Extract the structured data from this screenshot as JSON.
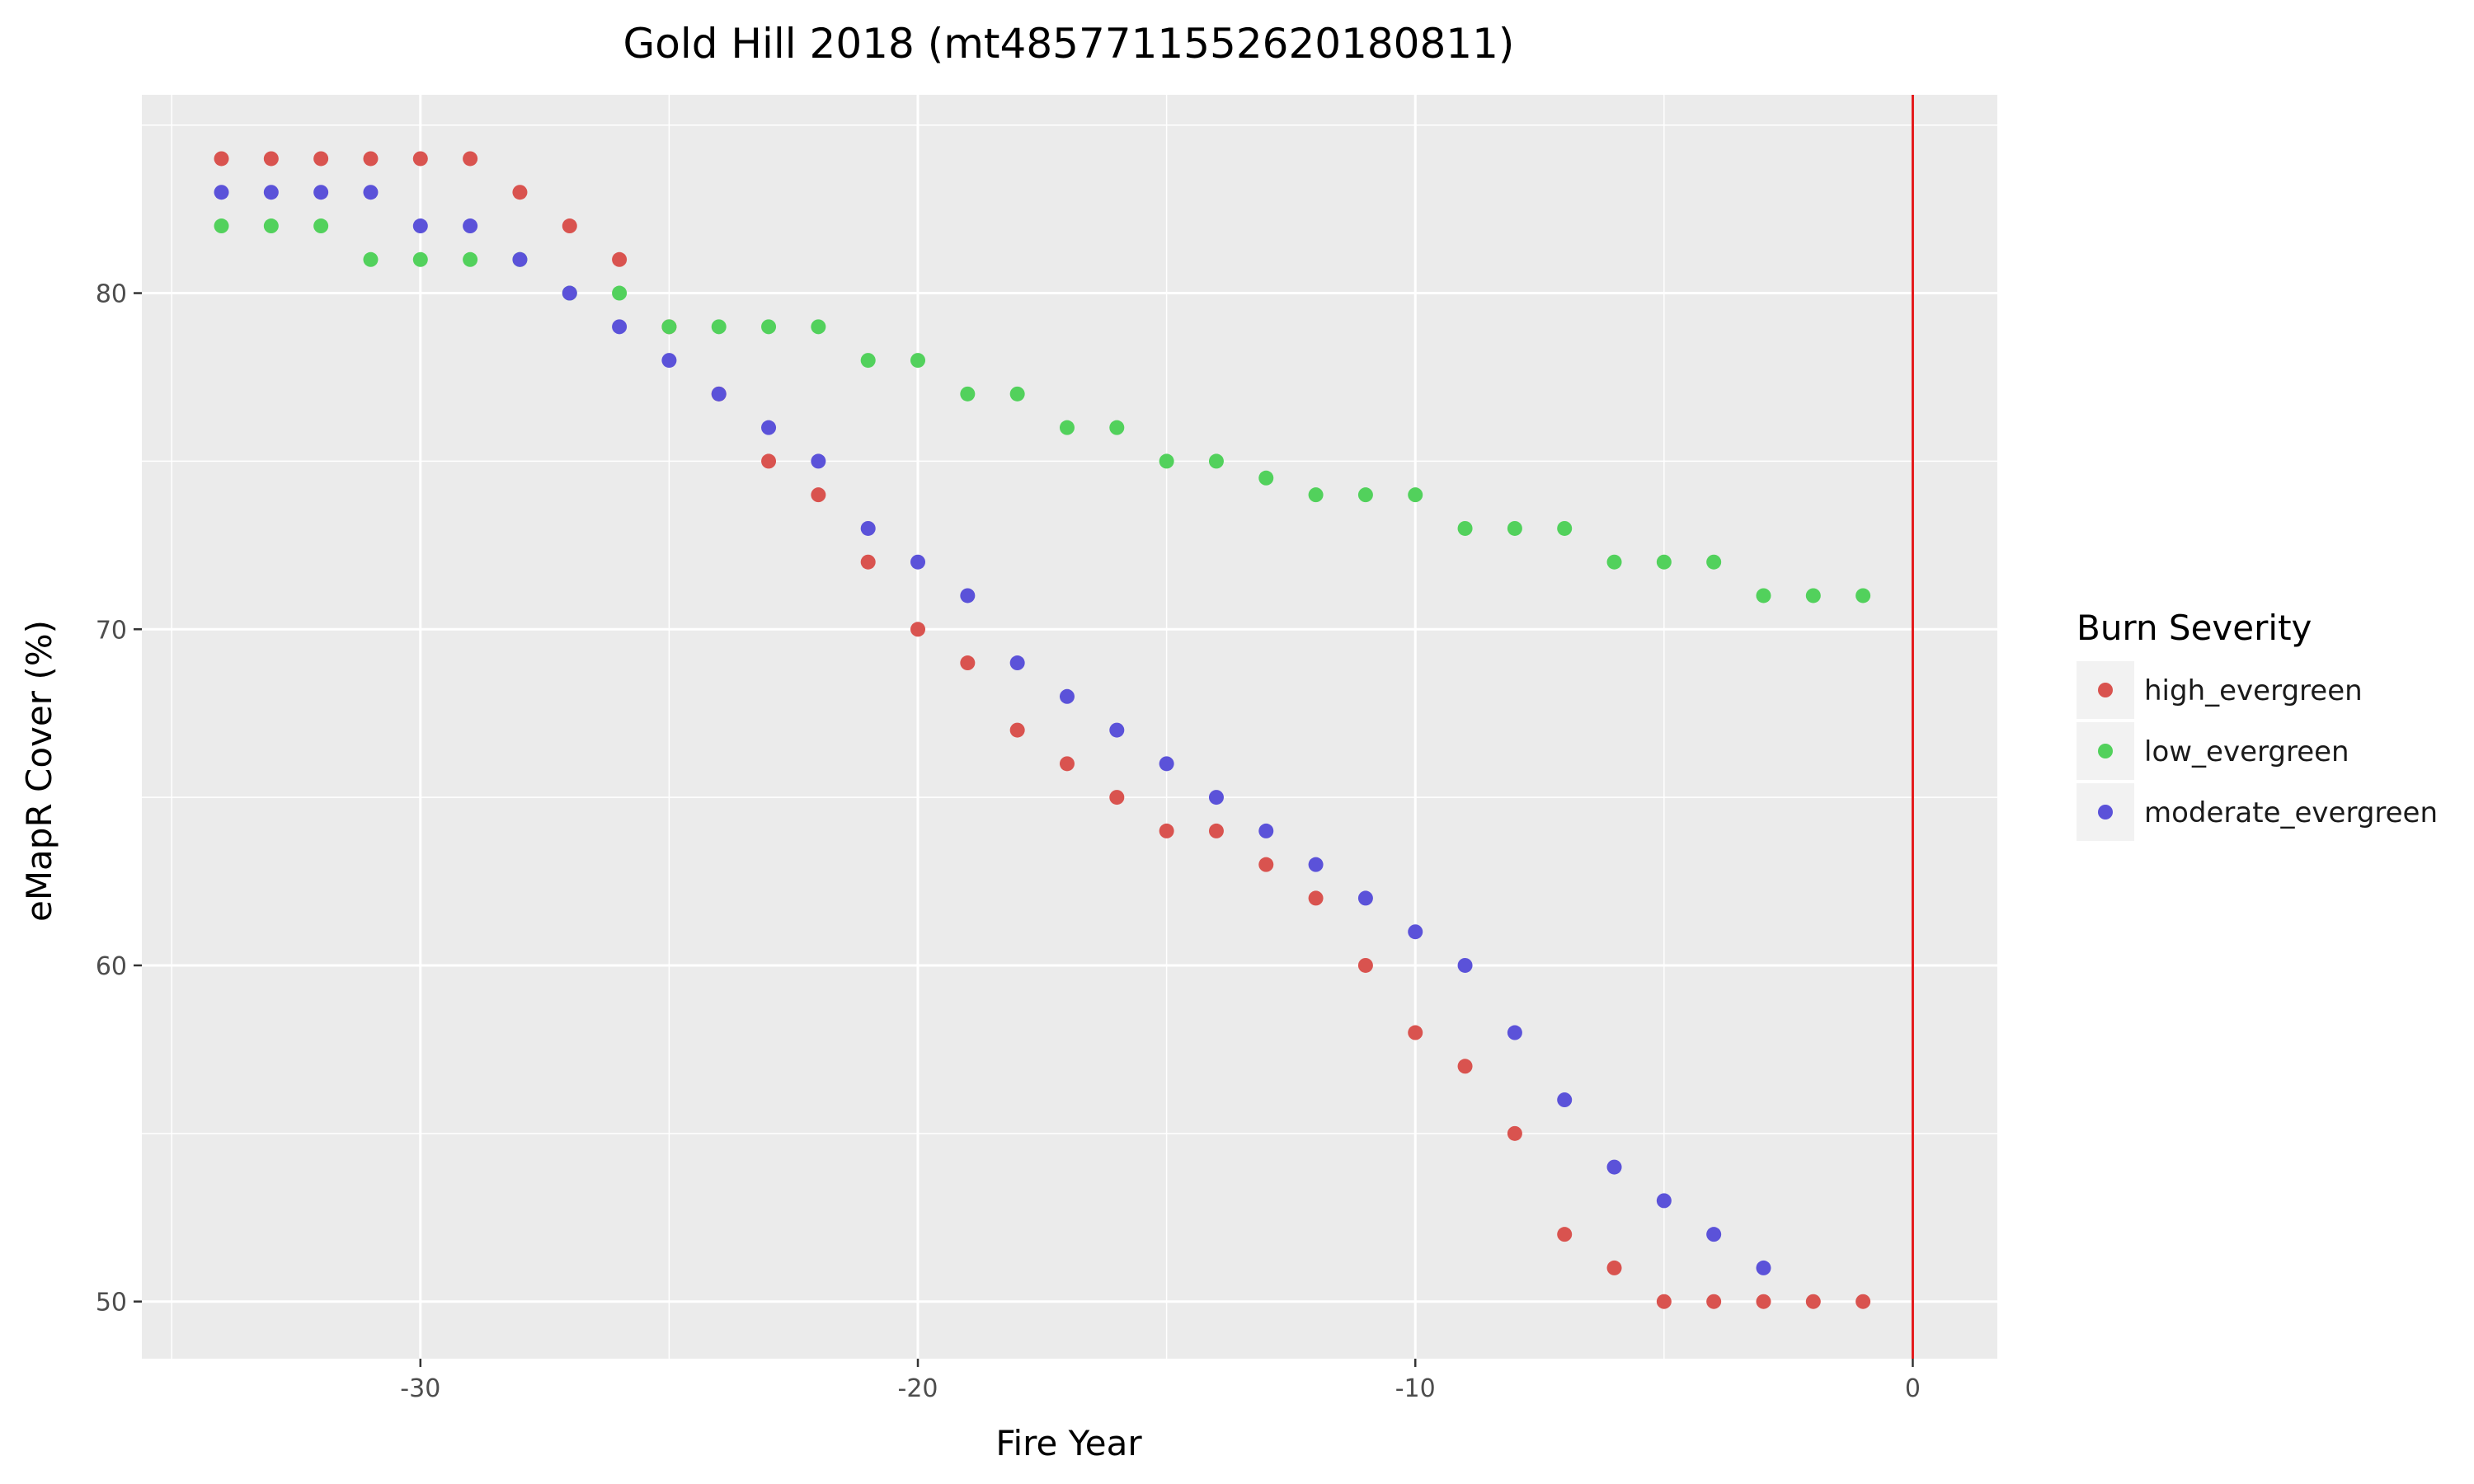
{
  "chart_data": {
    "type": "scatter",
    "title": "Gold Hill 2018 (mt4857711552620180811)",
    "xlabel": "Fire Year",
    "ylabel": "eMapR Cover (%)",
    "xlim": [
      -35.6,
      1.7
    ],
    "ylim": [
      48.3,
      85.9
    ],
    "x_ticks": [
      -30,
      -20,
      -10,
      0
    ],
    "x_tick_labels": [
      "-30",
      "-20",
      "-10",
      "0"
    ],
    "y_ticks": [
      50,
      60,
      70,
      80
    ],
    "y_tick_labels": [
      "50",
      "60",
      "70",
      "80"
    ],
    "grid": true,
    "vline": {
      "x": 0,
      "color": "#e41a1c"
    },
    "legend": {
      "title": "Burn Severity",
      "position": "right"
    },
    "series": [
      {
        "name": "high_evergreen",
        "color": "#d9534f",
        "x": [
          -34,
          -33,
          -32,
          -31,
          -30,
          -29,
          -28,
          -27,
          -26,
          -25,
          -24,
          -23,
          -22,
          -21,
          -20,
          -19,
          -18,
          -17,
          -16,
          -15,
          -14,
          -13,
          -12,
          -11,
          -10,
          -9,
          -8,
          -7,
          -6,
          -5,
          -4,
          -3,
          -2,
          -1
        ],
        "y": [
          84,
          84,
          84,
          84,
          84,
          84,
          83,
          82,
          81,
          79,
          77,
          75,
          74,
          72,
          70,
          69,
          67,
          66,
          65,
          64,
          64,
          63,
          62,
          60,
          58,
          57,
          55,
          52,
          51,
          50,
          50,
          50,
          50,
          50
        ]
      },
      {
        "name": "low_evergreen",
        "color": "#52d15c",
        "x": [
          -34,
          -33,
          -32,
          -31,
          -30,
          -29,
          -28,
          -27,
          -26,
          -25,
          -24,
          -23,
          -22,
          -21,
          -20,
          -19,
          -18,
          -17,
          -16,
          -15,
          -14,
          -13,
          -12,
          -11,
          -10,
          -9,
          -8,
          -7,
          -6,
          -5,
          -4,
          -3,
          -2,
          -1
        ],
        "y": [
          82,
          82,
          82,
          81,
          81,
          81,
          81,
          80,
          80,
          79,
          79,
          79,
          79,
          78,
          78,
          77,
          77,
          76,
          76,
          75,
          75,
          74.5,
          74,
          74,
          74,
          73,
          73,
          73,
          72,
          72,
          72,
          71,
          71,
          71
        ]
      },
      {
        "name": "moderate_evergreen",
        "color": "#5b52d9",
        "x": [
          -34,
          -33,
          -32,
          -31,
          -30,
          -29,
          -28,
          -27,
          -26,
          -25,
          -24,
          -23,
          -22,
          -21,
          -20,
          -19,
          -18,
          -17,
          -16,
          -15,
          -14,
          -13,
          -12,
          -11,
          -10,
          -9,
          -8,
          -7,
          -6,
          -5,
          -4,
          -3
        ],
        "y": [
          83,
          83,
          83,
          83,
          82,
          82,
          81,
          80,
          79,
          78,
          77,
          76,
          75,
          73,
          72,
          71,
          69,
          68,
          67,
          66,
          65,
          64,
          63,
          62,
          61,
          60,
          58,
          56,
          54,
          53,
          52,
          51
        ]
      }
    ]
  }
}
